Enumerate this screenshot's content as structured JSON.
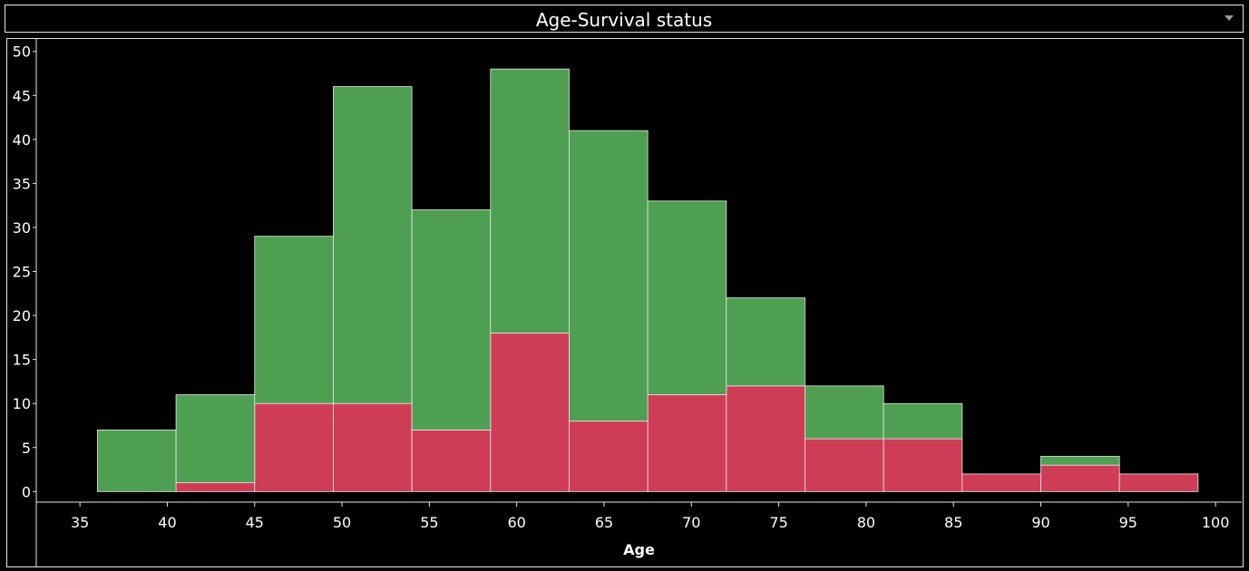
{
  "header": {
    "title": "Age-Survival status",
    "menu_icon": "chevron-down-icon"
  },
  "chart_data": {
    "type": "bar",
    "stacked": true,
    "histogram": true,
    "title": "Age-Survival status",
    "xlabel": "Age",
    "ylabel": "",
    "xlim": [
      32.5,
      101.5
    ],
    "ylim": [
      -1.2,
      51
    ],
    "bin_width": 4.5,
    "x_ticks": [
      35,
      40,
      45,
      50,
      55,
      60,
      65,
      70,
      75,
      80,
      85,
      90,
      95,
      100
    ],
    "y_ticks": [
      0,
      5,
      10,
      15,
      20,
      25,
      30,
      35,
      40,
      45,
      50
    ],
    "bins": [
      [
        36.0,
        40.5
      ],
      [
        40.5,
        45.0
      ],
      [
        45.0,
        49.5
      ],
      [
        49.5,
        54.0
      ],
      [
        54.0,
        58.5
      ],
      [
        58.5,
        63.0
      ],
      [
        63.0,
        67.5
      ],
      [
        67.5,
        72.0
      ],
      [
        72.0,
        76.5
      ],
      [
        76.5,
        81.0
      ],
      [
        81.0,
        85.5
      ],
      [
        85.5,
        90.0
      ],
      [
        90.0,
        94.5
      ],
      [
        94.5,
        99.0
      ]
    ],
    "series": [
      {
        "values": [
          0,
          1,
          10,
          10,
          7,
          18,
          8,
          11,
          12,
          6,
          6,
          2,
          3,
          2
        ],
        "color": "#cf3c55"
      },
      {
        "values": [
          7,
          10,
          19,
          36,
          25,
          30,
          33,
          22,
          10,
          6,
          4,
          0,
          1,
          0
        ],
        "color": "#4e9f52"
      }
    ],
    "totals": [
      7,
      11,
      29,
      46,
      32,
      48,
      41,
      33,
      22,
      12,
      10,
      2,
      4,
      2
    ],
    "grid": false,
    "legend": "none",
    "colors": {
      "background": "#000000",
      "axis": "#e8e8e8",
      "bar_border": "#e8e8e8"
    }
  }
}
